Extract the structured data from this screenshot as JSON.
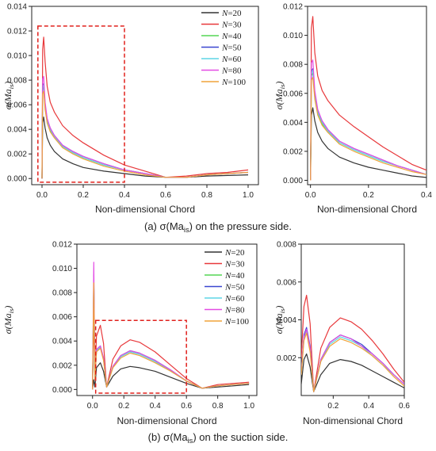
{
  "figure": {
    "caption_a": "(a)  σ(Ma_is)  on the pressure side.",
    "caption_b": "(b)  σ(Ma_is)  on the suction side.",
    "colors": {
      "N=20": "#333333",
      "N=30": "#e8383b",
      "N=40": "#55d655",
      "N=50": "#3a47d0",
      "N=60": "#5fd6e6",
      "N=80": "#e44ce4",
      "N=100": "#f0a33a"
    }
  },
  "chart_data": [
    {
      "type": "line",
      "panel": "a-left",
      "xlabel": "Non-dimensional Chord",
      "ylabel": "σ(Ma_is)",
      "xlim": [
        -0.05,
        1.05
      ],
      "ylim": [
        -0.0005,
        0.014
      ],
      "xticks": [
        0.0,
        0.2,
        0.4,
        0.6,
        0.8,
        1.0
      ],
      "xtick_labels": [
        "0.0",
        "0.2",
        "0.4",
        "0.6",
        "0.8",
        "1.0"
      ],
      "yticks": [
        0.0,
        0.002,
        0.004,
        0.006,
        0.008,
        0.01,
        0.012,
        0.014
      ],
      "ytick_labels": [
        "0.000",
        "0.002",
        "0.004",
        "0.006",
        "0.008",
        "0.010",
        "0.012",
        "0.014"
      ],
      "legend_position": "top-right",
      "highlight_box": {
        "x": [
          -0.02,
          0.4
        ],
        "y": [
          -0.0003,
          0.0124
        ]
      },
      "x": [
        0.0,
        0.003,
        0.008,
        0.015,
        0.025,
        0.04,
        0.06,
        0.1,
        0.15,
        0.2,
        0.3,
        0.4,
        0.5,
        0.6,
        0.7,
        0.8,
        0.9,
        1.0
      ],
      "series": [
        {
          "name": "N=20",
          "values": [
            0.0,
            0.0045,
            0.005,
            0.0041,
            0.0033,
            0.0027,
            0.0022,
            0.0016,
            0.0012,
            0.0009,
            0.0006,
            0.0004,
            0.0002,
            0.0001,
            0.0001,
            0.0002,
            0.00025,
            0.0003
          ]
        },
        {
          "name": "N=30",
          "values": [
            0.0,
            0.0105,
            0.0115,
            0.0095,
            0.0075,
            0.0062,
            0.0054,
            0.0043,
            0.0035,
            0.0029,
            0.0019,
            0.0011,
            0.0006,
            0.0001,
            0.0002,
            0.0004,
            0.0005,
            0.0007
          ]
        },
        {
          "name": "N=40",
          "values": [
            0.0,
            0.0072,
            0.0074,
            0.0058,
            0.0046,
            0.0039,
            0.0034,
            0.0026,
            0.0021,
            0.0017,
            0.0011,
            0.0007,
            0.0004,
            0.0001,
            0.0001,
            0.0003,
            0.0004,
            0.0005
          ]
        },
        {
          "name": "N=50",
          "values": [
            0.0,
            0.0075,
            0.0077,
            0.006,
            0.0048,
            0.0041,
            0.0035,
            0.0027,
            0.0022,
            0.0018,
            0.0012,
            0.0007,
            0.0004,
            0.0001,
            0.0001,
            0.0003,
            0.0004,
            0.0005
          ]
        },
        {
          "name": "N=60",
          "values": [
            0.0,
            0.0074,
            0.0076,
            0.0059,
            0.0047,
            0.004,
            0.0034,
            0.0026,
            0.0021,
            0.0017,
            0.0011,
            0.0007,
            0.0004,
            0.0001,
            0.0001,
            0.0003,
            0.0004,
            0.0005
          ]
        },
        {
          "name": "N=80",
          "values": [
            0.0,
            0.0081,
            0.0083,
            0.0062,
            0.0049,
            0.0041,
            0.0035,
            0.0027,
            0.0022,
            0.0018,
            0.0012,
            0.0007,
            0.0004,
            0.0001,
            0.0001,
            0.0003,
            0.0004,
            0.0005
          ]
        },
        {
          "name": "N=100",
          "values": [
            0.0,
            0.0069,
            0.0071,
            0.0056,
            0.0045,
            0.0038,
            0.0033,
            0.0025,
            0.002,
            0.0016,
            0.001,
            0.0006,
            0.0003,
            0.0001,
            0.0001,
            0.0003,
            0.0004,
            0.0005
          ]
        }
      ]
    },
    {
      "type": "line",
      "panel": "a-right",
      "xlabel": "Non-dimensional Chord",
      "ylabel": "σ(Ma_is)",
      "xlim": [
        -0.01,
        0.4
      ],
      "ylim": [
        -0.0003,
        0.012
      ],
      "xticks": [
        0.0,
        0.2,
        0.4
      ],
      "xtick_labels": [
        "0.0",
        "0.2",
        "0.4"
      ],
      "yticks": [
        0.0,
        0.002,
        0.004,
        0.006,
        0.008,
        0.01,
        0.012
      ],
      "ytick_labels": [
        "0.000",
        "0.002",
        "0.004",
        "0.006",
        "0.008",
        "0.010",
        "0.012"
      ],
      "x": [
        0.0,
        0.003,
        0.008,
        0.015,
        0.025,
        0.04,
        0.06,
        0.1,
        0.15,
        0.2,
        0.25,
        0.3,
        0.35,
        0.4
      ],
      "series": [
        {
          "name": "N=20",
          "values": [
            0.0,
            0.0045,
            0.005,
            0.0041,
            0.0033,
            0.0027,
            0.0022,
            0.0016,
            0.0012,
            0.0009,
            0.0007,
            0.0005,
            0.0003,
            0.0002
          ]
        },
        {
          "name": "N=30",
          "values": [
            0.0,
            0.0105,
            0.0113,
            0.0088,
            0.0072,
            0.0062,
            0.0055,
            0.0045,
            0.0037,
            0.003,
            0.0023,
            0.0017,
            0.0011,
            0.0007
          ]
        },
        {
          "name": "N=40",
          "values": [
            0.0,
            0.0072,
            0.0074,
            0.0058,
            0.0046,
            0.0039,
            0.0034,
            0.0026,
            0.0021,
            0.0017,
            0.0013,
            0.001,
            0.0007,
            0.0004
          ]
        },
        {
          "name": "N=50",
          "values": [
            0.0,
            0.0075,
            0.0077,
            0.006,
            0.0048,
            0.0041,
            0.0035,
            0.0027,
            0.0022,
            0.0018,
            0.0014,
            0.001,
            0.0007,
            0.0004
          ]
        },
        {
          "name": "N=60",
          "values": [
            0.0,
            0.0074,
            0.0076,
            0.0059,
            0.0047,
            0.004,
            0.0034,
            0.0026,
            0.0021,
            0.0017,
            0.0013,
            0.001,
            0.0007,
            0.0004
          ]
        },
        {
          "name": "N=80",
          "values": [
            0.0,
            0.0081,
            0.0083,
            0.0062,
            0.0049,
            0.0041,
            0.0035,
            0.0027,
            0.0022,
            0.0018,
            0.0014,
            0.001,
            0.0007,
            0.0004
          ]
        },
        {
          "name": "N=100",
          "values": [
            0.0,
            0.0069,
            0.0071,
            0.0056,
            0.0045,
            0.0038,
            0.0033,
            0.0025,
            0.002,
            0.0016,
            0.0012,
            0.0009,
            0.0006,
            0.0004
          ]
        }
      ]
    },
    {
      "type": "line",
      "panel": "b-left",
      "xlabel": "Non-dimensional Chord",
      "ylabel": "σ(Ma_is)",
      "xlim": [
        -0.1,
        1.05
      ],
      "ylim": [
        -0.0005,
        0.012
      ],
      "xticks": [
        0.0,
        0.2,
        0.4,
        0.6,
        0.8,
        1.0
      ],
      "xtick_labels": [
        "0.0",
        "0.2",
        "0.4",
        "0.6",
        "0.8",
        "1.0"
      ],
      "yticks": [
        0.0,
        0.002,
        0.004,
        0.006,
        0.008,
        0.01,
        0.012
      ],
      "ytick_labels": [
        "0.000",
        "0.002",
        "0.004",
        "0.006",
        "0.008",
        "0.010",
        "0.012"
      ],
      "legend_position": "top-right",
      "highlight_box": {
        "x": [
          0.02,
          0.6
        ],
        "y": [
          -0.0003,
          0.0057
        ]
      },
      "x": [
        0.0,
        0.008,
        0.015,
        0.025,
        0.05,
        0.07,
        0.09,
        0.13,
        0.18,
        0.24,
        0.3,
        0.4,
        0.5,
        0.6,
        0.7,
        0.8,
        0.9,
        1.0
      ],
      "series": [
        {
          "name": "N=20",
          "values": [
            0.0,
            0.0008,
            0.0002,
            0.0018,
            0.0022,
            0.0015,
            0.0002,
            0.0011,
            0.0017,
            0.0019,
            0.0018,
            0.0015,
            0.001,
            0.0005,
            0.0001,
            0.0002,
            0.0003,
            0.0004
          ]
        },
        {
          "name": "N=30",
          "values": [
            0.0,
            0.006,
            0.001,
            0.0044,
            0.0053,
            0.0038,
            0.0002,
            0.0025,
            0.0036,
            0.0041,
            0.0039,
            0.0031,
            0.002,
            0.0009,
            0.0001,
            0.0004,
            0.0005,
            0.0006
          ]
        },
        {
          "name": "N=40",
          "values": [
            0.0,
            0.009,
            0.0008,
            0.0032,
            0.0035,
            0.0025,
            0.0002,
            0.0019,
            0.0028,
            0.0032,
            0.003,
            0.0024,
            0.0016,
            0.0007,
            0.0001,
            0.0003,
            0.0004,
            0.0005
          ]
        },
        {
          "name": "N=50",
          "values": [
            0.0,
            0.0095,
            0.0008,
            0.0033,
            0.0036,
            0.0026,
            0.0002,
            0.0019,
            0.0028,
            0.0032,
            0.003,
            0.0024,
            0.0016,
            0.0007,
            0.0001,
            0.0003,
            0.0004,
            0.0005
          ]
        },
        {
          "name": "N=60",
          "values": [
            0.0,
            0.0092,
            0.0008,
            0.0032,
            0.0035,
            0.0025,
            0.0002,
            0.0018,
            0.0027,
            0.0031,
            0.0029,
            0.0023,
            0.0015,
            0.0007,
            0.0001,
            0.0003,
            0.0004,
            0.0005
          ]
        },
        {
          "name": "N=80",
          "values": [
            0.0,
            0.0105,
            0.0008,
            0.0033,
            0.0036,
            0.0026,
            0.0002,
            0.0019,
            0.0028,
            0.0032,
            0.003,
            0.0024,
            0.0016,
            0.0007,
            0.0001,
            0.0003,
            0.0004,
            0.0005
          ]
        },
        {
          "name": "N=100",
          "values": [
            0.0,
            0.0088,
            0.0008,
            0.0031,
            0.0034,
            0.0024,
            0.0002,
            0.0018,
            0.0026,
            0.003,
            0.0028,
            0.0022,
            0.0015,
            0.0007,
            0.0001,
            0.0003,
            0.0004,
            0.0005
          ]
        }
      ]
    },
    {
      "type": "line",
      "panel": "b-right",
      "xlabel": "Non-dimensional Chord",
      "ylabel": "σ(Ma_is)",
      "xlim": [
        0.02,
        0.6
      ],
      "ylim": [
        0.0,
        0.008
      ],
      "xticks": [
        0.2,
        0.4,
        0.6
      ],
      "xtick_labels": [
        "0.2",
        "0.4",
        "0.6"
      ],
      "yticks": [
        0.002,
        0.004,
        0.006,
        0.008
      ],
      "ytick_labels": [
        "0.002",
        "0.004",
        "0.006",
        "0.008"
      ],
      "x": [
        0.02,
        0.035,
        0.05,
        0.07,
        0.09,
        0.13,
        0.18,
        0.24,
        0.3,
        0.36,
        0.42,
        0.48,
        0.54,
        0.6
      ],
      "series": [
        {
          "name": "N=20",
          "values": [
            0.0006,
            0.0019,
            0.0022,
            0.0015,
            0.0002,
            0.0011,
            0.0017,
            0.0019,
            0.0018,
            0.0016,
            0.0013,
            0.001,
            0.0007,
            0.0004
          ]
        },
        {
          "name": "N=30",
          "values": [
            0.002,
            0.0047,
            0.0053,
            0.0038,
            0.0002,
            0.0025,
            0.0036,
            0.0041,
            0.0039,
            0.0035,
            0.0029,
            0.0022,
            0.0014,
            0.0007
          ]
        },
        {
          "name": "N=40",
          "values": [
            0.0012,
            0.0031,
            0.0035,
            0.0025,
            0.0002,
            0.0019,
            0.0028,
            0.0032,
            0.003,
            0.0026,
            0.0022,
            0.0017,
            0.0011,
            0.0006
          ]
        },
        {
          "name": "N=50",
          "values": [
            0.0012,
            0.0032,
            0.0036,
            0.0026,
            0.0002,
            0.0019,
            0.0028,
            0.0032,
            0.003,
            0.0027,
            0.0022,
            0.0017,
            0.0011,
            0.0006
          ]
        },
        {
          "name": "N=60",
          "values": [
            0.0012,
            0.003,
            0.0034,
            0.0024,
            0.0002,
            0.0018,
            0.0027,
            0.0031,
            0.0029,
            0.0026,
            0.0021,
            0.0016,
            0.0011,
            0.0006
          ]
        },
        {
          "name": "N=80",
          "values": [
            0.0012,
            0.0031,
            0.0035,
            0.0025,
            0.0002,
            0.0019,
            0.0028,
            0.0032,
            0.003,
            0.0026,
            0.0022,
            0.0017,
            0.0011,
            0.0006
          ]
        },
        {
          "name": "N=100",
          "values": [
            0.0011,
            0.0029,
            0.0033,
            0.0023,
            0.0002,
            0.0018,
            0.0026,
            0.003,
            0.0028,
            0.0025,
            0.0021,
            0.0016,
            0.001,
            0.0005
          ]
        }
      ]
    }
  ]
}
